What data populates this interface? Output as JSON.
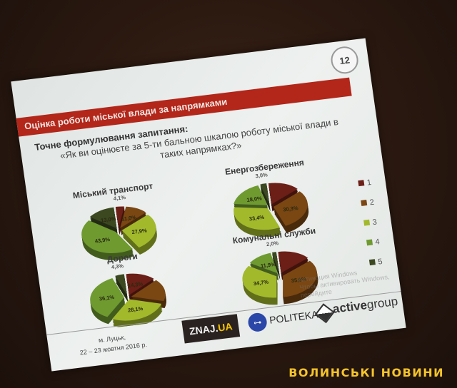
{
  "slide": {
    "number": "12",
    "header": "Оцінка роботи міської влади за напрямками",
    "question_label": "Точне формулювання запитання:",
    "question_text": "«Як ви оцінюєте за 5-ти бальною шкалою роботу міської влади в таких напрямках?»",
    "footer": {
      "city": "м. Луцьк,",
      "dates": "22 – 23 жовтня  2016 р.",
      "logos": {
        "znaj": "ZNAJ.",
        "znaj_ua": "UA",
        "politeka": "POLITEKA",
        "active": "active",
        "group": "group"
      }
    },
    "watermark": {
      "line1": "Активация Windows",
      "line2": "Чтобы активировать Windows, перейдите"
    }
  },
  "news_logo": "ВОЛИНСЬКІ НОВИНИ",
  "colors": {
    "1": "#6b1f16",
    "2": "#7a4612",
    "3": "#a2b92c",
    "4": "#6e9a30",
    "5": "#3b4820",
    "header": "#b3261a"
  },
  "chart_data": [
    {
      "type": "pie",
      "title": "Міський транспорт",
      "categories": [
        "1",
        "2",
        "3",
        "4",
        "5"
      ],
      "values": [
        4.1,
        11.0,
        27.9,
        43.9,
        13.0
      ],
      "labels": [
        "4,1%",
        "11,0%",
        "27,9%",
        "43,9%",
        "13,0%"
      ]
    },
    {
      "type": "pie",
      "title": "Енергозбереження",
      "categories": [
        "1",
        "2",
        "3",
        "4",
        "5"
      ],
      "values": [
        15.3,
        30.3,
        33.4,
        18.0,
        3.0
      ],
      "labels": [
        "",
        "30,3%",
        "33,4%",
        "18,0%",
        "3,0%"
      ]
    },
    {
      "type": "pie",
      "title": "Дороги",
      "categories": [
        "1",
        "2",
        "3",
        "4",
        "5"
      ],
      "values": [
        14.3,
        17.2,
        28.1,
        36.1,
        4.3
      ],
      "labels": [
        "14,3%",
        "",
        "28,1%",
        "36,1%",
        "4,3%"
      ]
    },
    {
      "type": "pie",
      "title": "Комунальні служби",
      "categories": [
        "1",
        "2",
        "3",
        "4",
        "5"
      ],
      "values": [
        15.8,
        35.6,
        34.7,
        11.9,
        2.0
      ],
      "labels": [
        "",
        "35,6%",
        "34,7%",
        "11,9%",
        "2,0%"
      ]
    }
  ],
  "legend": [
    "1",
    "2",
    "3",
    "4",
    "5"
  ]
}
